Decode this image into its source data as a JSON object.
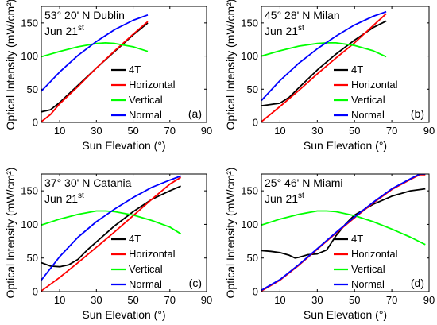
{
  "chart_data": [
    {
      "type": "line",
      "location": "53° 20' N Dublin",
      "date_text": "Jun 21",
      "date_sup": "st",
      "panel_label": "(a)",
      "xlabel": "Sun Elevation (°)",
      "ylabel": "Optical Intensity (mW/cm²)",
      "xlim": [
        0,
        90
      ],
      "ylim": [
        0,
        175
      ],
      "xticks": [
        10,
        30,
        50,
        70,
        90
      ],
      "yticks": [
        0,
        50,
        100,
        150
      ],
      "legend_position": "center-right",
      "series": [
        {
          "name": "4T",
          "color": "#000000",
          "points": [
            [
              0,
              16
            ],
            [
              5,
              19
            ],
            [
              10,
              30
            ],
            [
              20,
              56
            ],
            [
              30,
              82
            ],
            [
              40,
              107
            ],
            [
              50,
              132
            ],
            [
              58,
              150
            ]
          ]
        },
        {
          "name": "Horizontal",
          "color": "#ff0000",
          "points": [
            [
              0,
              1
            ],
            [
              5,
              12
            ],
            [
              10,
              28
            ],
            [
              20,
              54
            ],
            [
              30,
              82
            ],
            [
              40,
              108
            ],
            [
              50,
              133
            ],
            [
              58,
              152
            ]
          ]
        },
        {
          "name": "Vertical",
          "color": "#00ff00",
          "points": [
            [
              0,
              99
            ],
            [
              10,
              107
            ],
            [
              20,
              114
            ],
            [
              30,
              119
            ],
            [
              35,
              120
            ],
            [
              40,
              119
            ],
            [
              50,
              114
            ],
            [
              58,
              107
            ]
          ]
        },
        {
          "name": "Normal",
          "color": "#0000ff",
          "points": [
            [
              0,
              47
            ],
            [
              10,
              76
            ],
            [
              20,
              101
            ],
            [
              30,
              122
            ],
            [
              40,
              140
            ],
            [
              50,
              154
            ],
            [
              58,
              162
            ]
          ]
        }
      ]
    },
    {
      "type": "line",
      "location": "45° 28' N Milan",
      "date_text": "Jun 21",
      "date_sup": "st",
      "panel_label": "(b)",
      "xlabel": "Sun Elevation (°)",
      "ylabel": "Optical Intensity (mW/cm²)",
      "xlim": [
        0,
        90
      ],
      "ylim": [
        0,
        175
      ],
      "xticks": [
        10,
        30,
        50,
        70,
        90
      ],
      "yticks": [
        0,
        50,
        100,
        150
      ],
      "legend_position": "center-right",
      "series": [
        {
          "name": "4T",
          "color": "#000000",
          "points": [
            [
              0,
              25
            ],
            [
              5,
              27
            ],
            [
              10,
              29
            ],
            [
              15,
              38
            ],
            [
              20,
              52
            ],
            [
              30,
              79
            ],
            [
              40,
              103
            ],
            [
              50,
              124
            ],
            [
              60,
              143
            ],
            [
              67,
              153
            ]
          ]
        },
        {
          "name": "Horizontal",
          "color": "#ff0000",
          "points": [
            [
              0,
              1
            ],
            [
              10,
              24
            ],
            [
              20,
              48
            ],
            [
              30,
              73
            ],
            [
              40,
              97
            ],
            [
              50,
              120
            ],
            [
              60,
              146
            ],
            [
              67,
              164
            ]
          ]
        },
        {
          "name": "Vertical",
          "color": "#00ff00",
          "points": [
            [
              0,
              100
            ],
            [
              10,
              108
            ],
            [
              20,
              115
            ],
            [
              30,
              119
            ],
            [
              35,
              120
            ],
            [
              40,
              120
            ],
            [
              50,
              116
            ],
            [
              60,
              108
            ],
            [
              67,
              99
            ]
          ]
        },
        {
          "name": "Normal",
          "color": "#0000ff",
          "points": [
            [
              0,
              33
            ],
            [
              10,
              63
            ],
            [
              20,
              89
            ],
            [
              30,
              111
            ],
            [
              40,
              130
            ],
            [
              50,
              147
            ],
            [
              60,
              160
            ],
            [
              67,
              167
            ]
          ]
        }
      ]
    },
    {
      "type": "line",
      "location": "37° 30' N Catania",
      "date_text": "Jun 21",
      "date_sup": "st",
      "panel_label": "(c)",
      "xlabel": "Sun Elevation (°)",
      "ylabel": "Optical Intensity (mW/cm²)",
      "xlim": [
        0,
        90
      ],
      "ylim": [
        0,
        175
      ],
      "xticks": [
        10,
        30,
        50,
        70,
        90
      ],
      "yticks": [
        0,
        50,
        100,
        150
      ],
      "legend_position": "center-right",
      "series": [
        {
          "name": "4T",
          "color": "#000000",
          "points": [
            [
              0,
              43
            ],
            [
              5,
              38
            ],
            [
              10,
              37
            ],
            [
              15,
              40
            ],
            [
              20,
              48
            ],
            [
              25,
              62
            ],
            [
              30,
              74
            ],
            [
              40,
              98
            ],
            [
              50,
              119
            ],
            [
              60,
              137
            ],
            [
              70,
              150
            ],
            [
              76,
              157
            ]
          ]
        },
        {
          "name": "Horizontal",
          "color": "#ff0000",
          "points": [
            [
              0,
              1
            ],
            [
              10,
              21
            ],
            [
              20,
              43
            ],
            [
              30,
              66
            ],
            [
              40,
              89
            ],
            [
              50,
              113
            ],
            [
              60,
              137
            ],
            [
              70,
              160
            ],
            [
              76,
              170
            ]
          ]
        },
        {
          "name": "Vertical",
          "color": "#00ff00",
          "points": [
            [
              0,
              99
            ],
            [
              10,
              108
            ],
            [
              20,
              115
            ],
            [
              30,
              120
            ],
            [
              35,
              120
            ],
            [
              40,
              119
            ],
            [
              50,
              114
            ],
            [
              60,
              106
            ],
            [
              70,
              96
            ],
            [
              76,
              86
            ]
          ]
        },
        {
          "name": "Normal",
          "color": "#0000ff",
          "points": [
            [
              0,
              17
            ],
            [
              10,
              52
            ],
            [
              20,
              81
            ],
            [
              30,
              104
            ],
            [
              40,
              123
            ],
            [
              50,
              140
            ],
            [
              60,
              155
            ],
            [
              70,
              166
            ],
            [
              76,
              172
            ]
          ]
        }
      ]
    },
    {
      "type": "line",
      "location": "25° 46' N Miami",
      "date_text": "Jun 21",
      "date_sup": "st",
      "panel_label": "(d)",
      "xlabel": "Sun Elevation (°)",
      "ylabel": "Optical Intensity (mW/cm²)",
      "xlim": [
        0,
        90
      ],
      "ylim": [
        0,
        175
      ],
      "xticks": [
        10,
        30,
        50,
        70,
        90
      ],
      "yticks": [
        0,
        50,
        100,
        150
      ],
      "legend_position": "center-right",
      "series": [
        {
          "name": "4T",
          "color": "#000000",
          "points": [
            [
              0,
              61
            ],
            [
              5,
              60
            ],
            [
              10,
              58
            ],
            [
              15,
              54
            ],
            [
              18,
              50
            ],
            [
              20,
              51
            ],
            [
              25,
              55
            ],
            [
              30,
              56
            ],
            [
              35,
              62
            ],
            [
              40,
              83
            ],
            [
              45,
              100
            ],
            [
              50,
              114
            ],
            [
              60,
              130
            ],
            [
              70,
              142
            ],
            [
              80,
              150
            ],
            [
              88,
              153
            ]
          ]
        },
        {
          "name": "Horizontal",
          "color": "#ff0000",
          "points": [
            [
              0,
              1
            ],
            [
              10,
              17
            ],
            [
              20,
              39
            ],
            [
              30,
              63
            ],
            [
              40,
              87
            ],
            [
              50,
              110
            ],
            [
              60,
              132
            ],
            [
              70,
              152
            ],
            [
              80,
              167
            ],
            [
              85,
              174
            ],
            [
              88,
              174
            ]
          ]
        },
        {
          "name": "Vertical",
          "color": "#00ff00",
          "points": [
            [
              0,
              99
            ],
            [
              10,
              108
            ],
            [
              20,
              115
            ],
            [
              30,
              120
            ],
            [
              35,
              120
            ],
            [
              40,
              119
            ],
            [
              50,
              113
            ],
            [
              60,
              104
            ],
            [
              70,
              93
            ],
            [
              80,
              81
            ],
            [
              88,
              70
            ]
          ]
        },
        {
          "name": "Normal",
          "color": "#0000ff",
          "points": [
            [
              0,
              2
            ],
            [
              10,
              18
            ],
            [
              20,
              40
            ],
            [
              30,
              64
            ],
            [
              40,
              88
            ],
            [
              50,
              111
            ],
            [
              60,
              133
            ],
            [
              70,
              153
            ],
            [
              80,
              168
            ],
            [
              85,
              175
            ],
            [
              88,
              175
            ]
          ]
        }
      ]
    }
  ]
}
